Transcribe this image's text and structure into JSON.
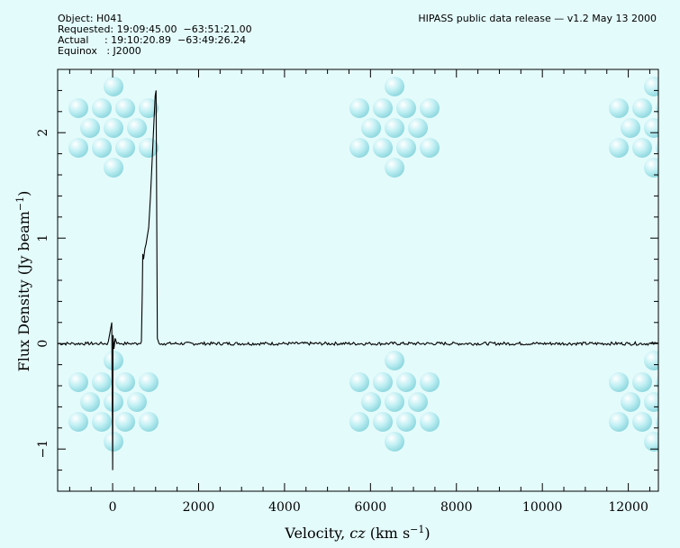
{
  "header": {
    "object_line": "Object: H041",
    "requested_line": "Requested: 19:09:45.00  −63:51:21.00",
    "actual_line": "Actual     : 19:10:20.89  −63:49:26.24",
    "equinox_line": "Equinox   : J2000",
    "release_line": "HIPASS public data release — v1.2 May 13 2000"
  },
  "chart_data": {
    "type": "line",
    "xlabel_main": "Velocity, ",
    "xlabel_var": "cz",
    "xlabel_units": " (km s",
    "xlabel_exp": "−1",
    "xlabel_close": ")",
    "ylabel_main": "Flux Density (Jy beam",
    "ylabel_exp": "−1",
    "ylabel_close": ")",
    "xlim": [
      -1280,
      12700
    ],
    "ylim": [
      -1.4,
      2.6
    ],
    "xticks": [
      0,
      2000,
      4000,
      6000,
      8000,
      10000,
      12000
    ],
    "xtick_labels": [
      "0",
      "2000",
      "4000",
      "6000",
      "8000",
      "10000",
      "12000"
    ],
    "yticks": [
      -1,
      0,
      1,
      2
    ],
    "ytick_labels": [
      "−1",
      "0",
      "1",
      "2"
    ],
    "grid": false,
    "series": [
      {
        "color": "#000000",
        "x": [
          -1280,
          -900,
          -600,
          -300,
          -100,
          -20,
          0,
          10,
          30,
          60,
          100,
          200,
          400,
          600,
          650,
          670,
          690,
          700,
          720,
          750,
          780,
          800,
          840,
          880,
          920,
          960,
          990,
          1010,
          1040,
          1080,
          1200,
          2000,
          4000,
          6000,
          8000,
          10000,
          12000,
          12700
        ],
        "y": [
          0.0,
          0.0,
          0.0,
          0.0,
          0.02,
          0.2,
          -1.2,
          0.08,
          -0.05,
          0.05,
          0.0,
          0.0,
          0.0,
          0.0,
          0.0,
          0.02,
          0.5,
          0.85,
          0.8,
          0.9,
          0.95,
          1.0,
          1.1,
          1.4,
          1.75,
          2.1,
          2.35,
          2.4,
          0.05,
          0.0,
          0.0,
          0.0,
          0.0,
          0.0,
          0.0,
          0.0,
          0.0,
          0.0
        ]
      }
    ]
  }
}
